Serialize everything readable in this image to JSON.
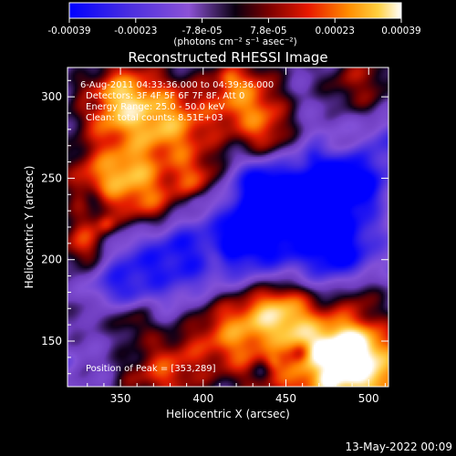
{
  "chart_data": {
    "type": "heatmap",
    "title": "Reconstructed RHESSI Image",
    "xlabel": "Heliocentric X (arcsec)",
    "ylabel": "Heliocentric Y (arcsec)",
    "xlim": [
      318,
      512
    ],
    "ylim": [
      122,
      318
    ],
    "x_ticks": [
      350,
      400,
      450,
      500
    ],
    "y_ticks": [
      150,
      200,
      250,
      300
    ],
    "colorbar": {
      "ticks": [
        "-0.00039",
        "-0.00023",
        "-7.8e-05",
        "7.8e-05",
        "0.00023",
        "0.00039"
      ],
      "unit_label": "(photons cm⁻² s⁻¹ asec⁻²)",
      "colors": [
        "#0000ff",
        "#5a2bd6",
        "#8c52d6",
        "#0a0010",
        "#7a0000",
        "#e81800",
        "#ff8c00",
        "#ffd040",
        "#ffffff"
      ]
    },
    "annotations": [
      "6-Aug-2011 04:33:36.000 to 04:39:36.000",
      "Detectors: 3F 4F 5F 6F 7F 8F, Att 0",
      "Energy Range: 25.0 - 50.0 keV",
      "Clean: total counts: 8.51E+03"
    ],
    "peak_label": "Position of Peak = [353,289]",
    "peak": [
      353,
      289
    ],
    "grid": false
  },
  "footer": {
    "date": "13-May-2022 00:09"
  }
}
